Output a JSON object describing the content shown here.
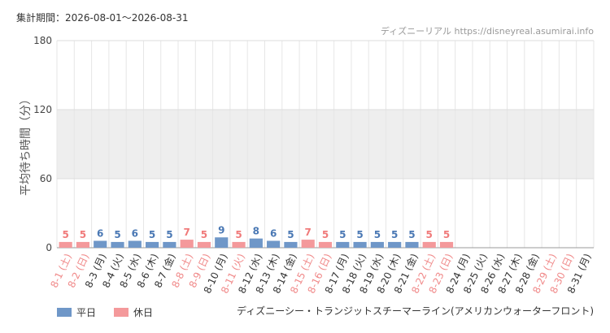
{
  "chart_data": {
    "type": "bar",
    "period": "集計期間：2026-08-01～2026-08-31",
    "source": "ディズニーリアル https://disneyreal.asumirai.info",
    "y_label": "平均待ち時間（分）",
    "caption": "ディズニーシー・トランジットスチーマーライン(アメリカンウォーターフロント)",
    "categories": [
      "8-1 (土)",
      "8-2 (日)",
      "8-3 (月)",
      "8-4 (火)",
      "8-5 (水)",
      "8-6 (木)",
      "8-7 (金)",
      "8-8 (土)",
      "8-9 (日)",
      "8-10 (月)",
      "8-11 (火)",
      "8-12 (水)",
      "8-13 (木)",
      "8-14 (金)",
      "8-15 (土)",
      "8-16 (日)",
      "8-17 (月)",
      "8-18 (火)",
      "8-19 (水)",
      "8-20 (木)",
      "8-21 (金)",
      "8-22 (土)",
      "8-23 (日)",
      "8-24 (月)",
      "8-25 (火)",
      "8-26 (水)",
      "8-27 (木)",
      "8-28 (金)",
      "8-29 (土)",
      "8-30 (日)",
      "8-31 (月)"
    ],
    "label_colors": [
      "#f08888",
      "#f08888",
      "#333",
      "#333",
      "#333",
      "#333",
      "#333",
      "#f08888",
      "#f08888",
      "#333",
      "#f08888",
      "#333",
      "#333",
      "#333",
      "#f08888",
      "#f08888",
      "#333",
      "#333",
      "#333",
      "#333",
      "#333",
      "#f08888",
      "#f08888",
      "#333",
      "#333",
      "#333",
      "#333",
      "#333",
      "#f08888",
      "#f08888",
      "#333"
    ],
    "series": [
      {
        "name": "平日",
        "color": "#6f97c8",
        "label_color": "#4a78b4",
        "values": [
          null,
          null,
          6,
          5,
          6,
          5,
          5,
          null,
          null,
          9,
          null,
          8,
          6,
          5,
          null,
          null,
          5,
          5,
          5,
          5,
          5,
          null,
          null,
          null,
          null,
          null,
          null,
          null,
          null,
          null,
          null
        ]
      },
      {
        "name": "休日",
        "color": "#f4999b",
        "label_color": "#f07a7a",
        "values": [
          5,
          5,
          null,
          null,
          null,
          null,
          null,
          7,
          5,
          null,
          5,
          null,
          null,
          null,
          7,
          5,
          null,
          null,
          null,
          null,
          null,
          5,
          5,
          null,
          null,
          null,
          null,
          null,
          null,
          null,
          null
        ]
      }
    ],
    "ylim": [
      0,
      180
    ],
    "yticks": [
      0,
      60,
      120,
      180
    ],
    "grid": true
  }
}
